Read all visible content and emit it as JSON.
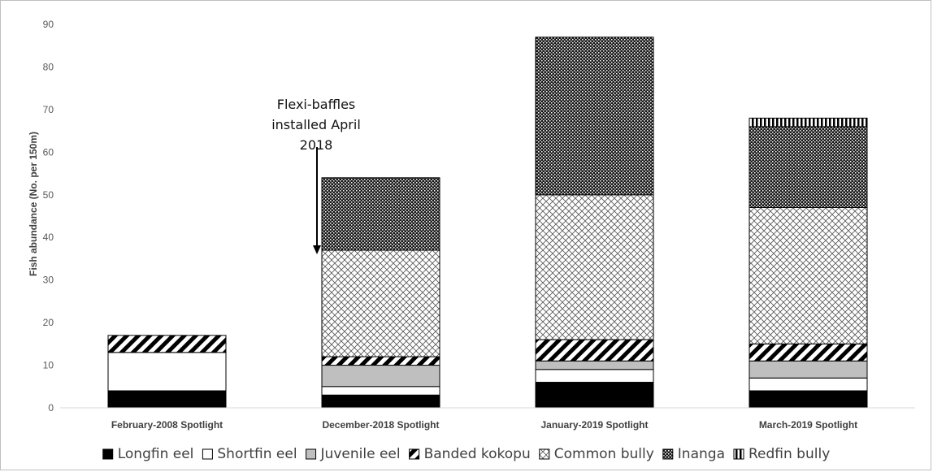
{
  "chart_data": {
    "type": "bar",
    "stacked": true,
    "title": "",
    "xlabel": "",
    "ylabel": "Fish abundance (No. per 150m)",
    "ylim": [
      0,
      90
    ],
    "yticks": [
      0,
      10,
      20,
      30,
      40,
      50,
      60,
      70,
      80,
      90
    ],
    "grid": false,
    "legend_position": "bottom",
    "categories": [
      "February-2008 Spotlight",
      "December-2018 Spotlight",
      "January-2019 Spotlight",
      "March-2019 Spotlight"
    ],
    "series": [
      {
        "name": "Longfin eel",
        "values": [
          4,
          3,
          6,
          4
        ]
      },
      {
        "name": "Shortfin eel",
        "values": [
          9,
          2,
          3,
          3
        ]
      },
      {
        "name": "Juvenile eel",
        "values": [
          0,
          5,
          2,
          4
        ]
      },
      {
        "name": "Banded kokopu",
        "values": [
          4,
          2,
          5,
          4
        ]
      },
      {
        "name": "Common bully",
        "values": [
          0,
          25,
          34,
          32
        ]
      },
      {
        "name": "Inanga",
        "values": [
          0,
          17,
          37,
          19
        ]
      },
      {
        "name": "Redfin bully",
        "values": [
          0,
          0,
          0,
          2
        ]
      }
    ],
    "annotation": {
      "lines": [
        "Flexi-baffles",
        "installed April",
        "2018"
      ]
    }
  },
  "styles": {
    "Longfin eel": "solid-black",
    "Shortfin eel": "white",
    "Juvenile eel": "solid-grey",
    "Banded kokopu": "diagonal-stripes",
    "Common bully": "crosshatch",
    "Inanga": "dense-checker",
    "Redfin bully": "vertical-stripes"
  }
}
